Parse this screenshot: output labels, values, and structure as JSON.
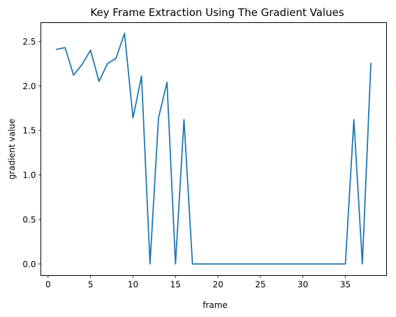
{
  "chart_data": {
    "type": "line",
    "title": "Key Frame Extraction Using The Gradient Values",
    "xlabel": "frame",
    "ylabel": "gradient value",
    "xlim": [
      -0.85,
      39.85
    ],
    "ylim": [
      -0.13,
      2.71
    ],
    "xticks": [
      0,
      5,
      10,
      15,
      20,
      25,
      30,
      35
    ],
    "xtick_labels": [
      "0",
      "5",
      "10",
      "15",
      "20",
      "25",
      "30",
      "35"
    ],
    "yticks": [
      0.0,
      0.5,
      1.0,
      1.5,
      2.0,
      2.5
    ],
    "ytick_labels": [
      "0.0",
      "0.5",
      "1.0",
      "1.5",
      "2.0",
      "2.5"
    ],
    "grid": false,
    "series": [
      {
        "color": "#1f77b4",
        "x": [
          1,
          2,
          3,
          4,
          5,
          6,
          7,
          8,
          9,
          10,
          11,
          12,
          13,
          14,
          15,
          16,
          17,
          18,
          19,
          20,
          21,
          22,
          23,
          24,
          25,
          26,
          27,
          28,
          29,
          30,
          31,
          32,
          33,
          34,
          35,
          36,
          37,
          38
        ],
        "y": [
          2.41,
          2.43,
          2.12,
          2.24,
          2.4,
          2.05,
          2.25,
          2.31,
          2.59,
          1.64,
          2.11,
          0.0,
          1.64,
          2.04,
          0.0,
          1.62,
          0.0,
          0.0,
          0.0,
          0.0,
          0.0,
          0.0,
          0.0,
          0.0,
          0.0,
          0.0,
          0.0,
          0.0,
          0.0,
          0.0,
          0.0,
          0.0,
          0.0,
          0.0,
          0.0,
          1.62,
          0.0,
          2.25
        ]
      }
    ]
  }
}
